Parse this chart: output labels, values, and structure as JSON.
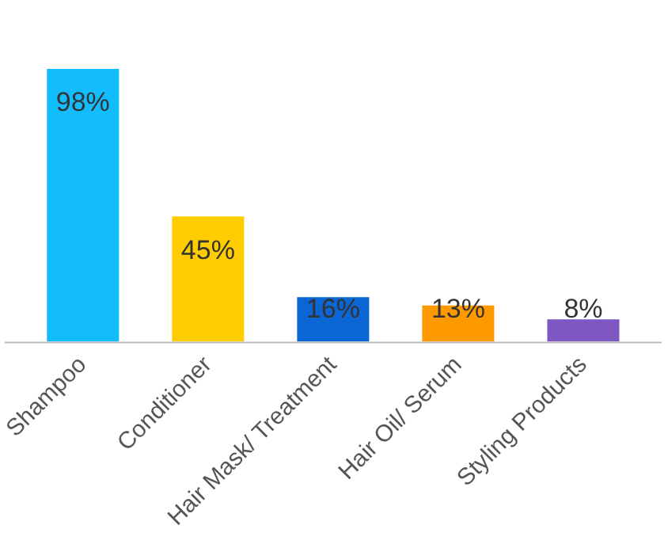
{
  "chart_data": {
    "type": "bar",
    "categories": [
      "Shampoo",
      "Conditioner",
      "Hair Mask/ Treatment",
      "Hair Oil/ Serum",
      "Styling Products"
    ],
    "values": [
      98,
      45,
      16,
      13,
      8
    ],
    "colors": [
      "#13bdfd",
      "#ffcc00",
      "#0a66d4",
      "#ff9900",
      "#7e57c2"
    ],
    "value_labels": [
      "98%",
      "45%",
      "16%",
      "13%",
      "8%"
    ],
    "tick_labels": "x",
    "grid": false,
    "legend": false
  }
}
